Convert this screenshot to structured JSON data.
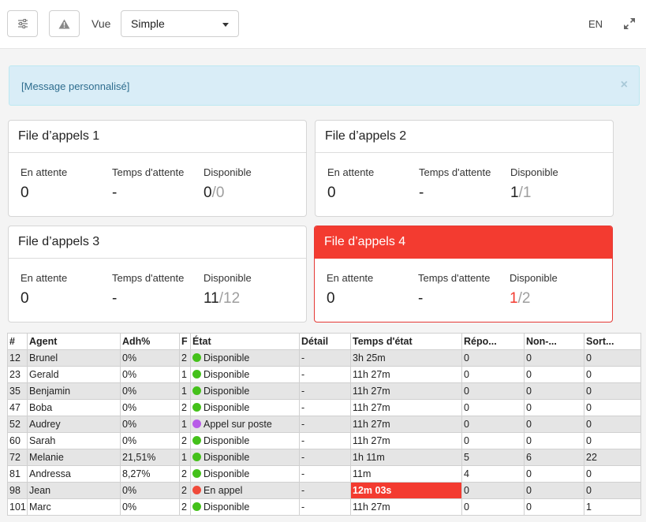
{
  "toolbar": {
    "filter_icon": "sliders-icon",
    "warning_icon": "warning-icon",
    "view_label": "Vue",
    "view_value": "Simple",
    "language": "EN",
    "expand_icon": "expand-icon"
  },
  "alert": {
    "message": "[Message personnalisé]",
    "close": "×"
  },
  "queues": [
    {
      "title": "File d’appels 1",
      "waiting_label": "En attente",
      "waiting": "0",
      "wait_time_label": "Temps d'attente",
      "wait_time": "-",
      "available_label": "Disponible",
      "available": "0",
      "total": "/0",
      "alarm": false
    },
    {
      "title": "File d’appels 2",
      "waiting_label": "En attente",
      "waiting": "0",
      "wait_time_label": "Temps d'attente",
      "wait_time": "-",
      "available_label": "Disponible",
      "available": "1",
      "total": "/1",
      "alarm": false
    },
    {
      "title": "File d’appels 3",
      "waiting_label": "En attente",
      "waiting": "0",
      "wait_time_label": "Temps d'attente",
      "wait_time": "-",
      "available_label": "Disponible",
      "available": "11",
      "total": "/12",
      "alarm": false
    },
    {
      "title": "File d’appels 4",
      "waiting_label": "En attente",
      "waiting": "0",
      "wait_time_label": "Temps d'attente",
      "wait_time": "-",
      "available_label": "Disponible",
      "available": "1",
      "total": "/2",
      "alarm": true
    }
  ],
  "table": {
    "headers": [
      "#",
      "Agent",
      "Adh%",
      "F",
      "État",
      "Détail",
      "Temps d'état",
      "Répo...",
      "Non-...",
      "Sort..."
    ],
    "rows": [
      {
        "num": "12",
        "agent": "Brunel",
        "adh": "0%",
        "f": "2",
        "state": "Disponible",
        "state_color": "#44c11a",
        "detail": "-",
        "time": "3h 25m",
        "rep": "0",
        "non": "0",
        "sort": "0",
        "critical": false
      },
      {
        "num": "23",
        "agent": "Gerald",
        "adh": "0%",
        "f": "1",
        "state": "Disponible",
        "state_color": "#44c11a",
        "detail": "-",
        "time": "11h 27m",
        "rep": "0",
        "non": "0",
        "sort": "0",
        "critical": false
      },
      {
        "num": "35",
        "agent": "Benjamin",
        "adh": "0%",
        "f": "1",
        "state": "Disponible",
        "state_color": "#44c11a",
        "detail": "-",
        "time": "11h 27m",
        "rep": "0",
        "non": "0",
        "sort": "0",
        "critical": false
      },
      {
        "num": "47",
        "agent": "Boba",
        "adh": "0%",
        "f": "2",
        "state": "Disponible",
        "state_color": "#44c11a",
        "detail": "-",
        "time": "11h 27m",
        "rep": "0",
        "non": "0",
        "sort": "0",
        "critical": false
      },
      {
        "num": "52",
        "agent": "Audrey",
        "adh": "0%",
        "f": "1",
        "state": "Appel sur poste",
        "state_color": "#b85ce8",
        "detail": "-",
        "time": "11h 27m",
        "rep": "0",
        "non": "0",
        "sort": "0",
        "critical": false
      },
      {
        "num": "60",
        "agent": "Sarah",
        "adh": "0%",
        "f": "2",
        "state": "Disponible",
        "state_color": "#44c11a",
        "detail": "-",
        "time": "11h 27m",
        "rep": "0",
        "non": "0",
        "sort": "0",
        "critical": false
      },
      {
        "num": "72",
        "agent": "Melanie",
        "adh": "21,51%",
        "f": "1",
        "state": "Disponible",
        "state_color": "#44c11a",
        "detail": "-",
        "time": "1h 11m",
        "rep": "5",
        "non": "6",
        "sort": "22",
        "critical": false
      },
      {
        "num": "81",
        "agent": "Andressa",
        "adh": "8,27%",
        "f": "2",
        "state": "Disponible",
        "state_color": "#44c11a",
        "detail": "-",
        "time": "11m",
        "rep": "4",
        "non": "0",
        "sort": "0",
        "critical": false
      },
      {
        "num": "98",
        "agent": "Jean",
        "adh": "0%",
        "f": "2",
        "state": "En appel",
        "state_color": "#f04a3a",
        "detail": "-",
        "time": "12m 03s",
        "rep": "0",
        "non": "0",
        "sort": "0",
        "critical": true
      },
      {
        "num": "101",
        "agent": "Marc",
        "adh": "0%",
        "f": "2",
        "state": "Disponible",
        "state_color": "#44c11a",
        "detail": "-",
        "time": "11h 27m",
        "rep": "0",
        "non": "0",
        "sort": "1",
        "critical": false
      }
    ]
  }
}
